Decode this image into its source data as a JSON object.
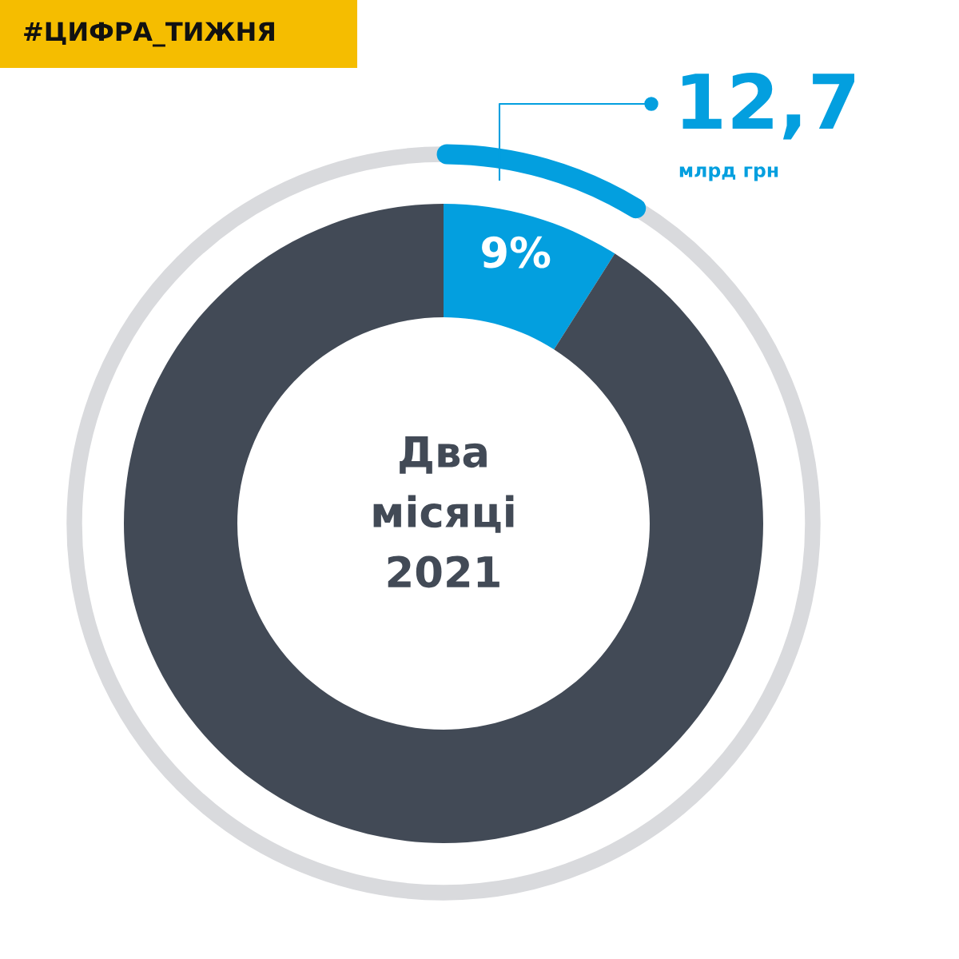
{
  "chart_data": {
    "type": "donut",
    "title": "#ЦИФРА_ТИЖНЯ",
    "categories": [
      null,
      null
    ],
    "values": [
      9,
      91
    ],
    "colors": [
      "#039fdf",
      "#424a56"
    ],
    "value_labels": [
      "9%",
      null
    ],
    "annotations": [
      "12,7",
      "млрд грн",
      "Два\nмісяці\n2021"
    ]
  }
}
